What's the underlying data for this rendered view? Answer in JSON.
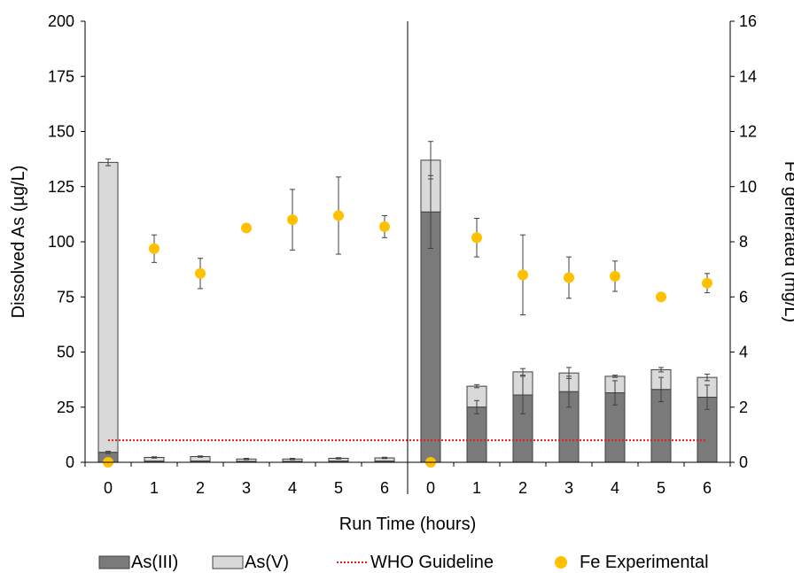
{
  "chart_data": {
    "type": "bar",
    "title": "",
    "xlabel": "Run Time (hours)",
    "ylabel": "Dissolved As (µg/L)",
    "y2label": "Fe generated (mg/L)",
    "ylim": [
      0,
      200
    ],
    "y2lim": [
      0,
      16
    ],
    "yticks": [
      0,
      25,
      50,
      75,
      100,
      125,
      150,
      175,
      200
    ],
    "y2ticks": [
      0,
      2,
      4,
      6,
      8,
      10,
      12,
      14,
      16
    ],
    "grid": false,
    "legend_position": "bottom",
    "groups": [
      {
        "categories": [
          "0",
          "1",
          "2",
          "3",
          "4",
          "5",
          "6"
        ],
        "as3": [
          4.5,
          0.5,
          0.6,
          0.4,
          0.4,
          0.5,
          0.5
        ],
        "as3_err": [
          0.5,
          0,
          0,
          0,
          0,
          0,
          0
        ],
        "total_as": [
          136,
          2.2,
          2.6,
          1.5,
          1.5,
          1.8,
          2.0
        ],
        "total_err": [
          1.5,
          0.3,
          0.3,
          0.3,
          0.3,
          0.3,
          0.3
        ],
        "fe": [
          0.0,
          7.75,
          6.85,
          8.5,
          8.8,
          8.95,
          8.55
        ],
        "fe_err": [
          0,
          0.5,
          0.55,
          0.15,
          1.1,
          1.4,
          0.4
        ]
      },
      {
        "categories": [
          "0",
          "1",
          "2",
          "3",
          "4",
          "5",
          "6"
        ],
        "as3": [
          113.5,
          25,
          30.5,
          32,
          31.5,
          33,
          29.5
        ],
        "as3_err": [
          16.5,
          3,
          8.5,
          7,
          5.5,
          5.5,
          5.5
        ],
        "total_as": [
          137,
          34.5,
          41,
          40.5,
          39,
          42,
          38.5
        ],
        "total_err": [
          8.5,
          0.7,
          1.5,
          2.5,
          0.5,
          1,
          1.5
        ],
        "fe": [
          0.0,
          8.15,
          6.8,
          6.7,
          6.75,
          6.0,
          6.5
        ],
        "fe_err": [
          0,
          0.7,
          1.45,
          0.75,
          0.55,
          0,
          0.35
        ]
      }
    ],
    "who_guideline": 10,
    "colors": {
      "as3": "#7a7a7a",
      "as5": "#d9d9d9",
      "who": "#e0201c",
      "fe": "#ffc000",
      "bar_stroke": "#404040",
      "err": "#404040"
    },
    "legend": [
      {
        "key": "as3",
        "label": "As(III)"
      },
      {
        "key": "as5",
        "label": "As(V)"
      },
      {
        "key": "who",
        "label": "WHO Guideline"
      },
      {
        "key": "fe",
        "label": "Fe Experimental"
      }
    ]
  }
}
